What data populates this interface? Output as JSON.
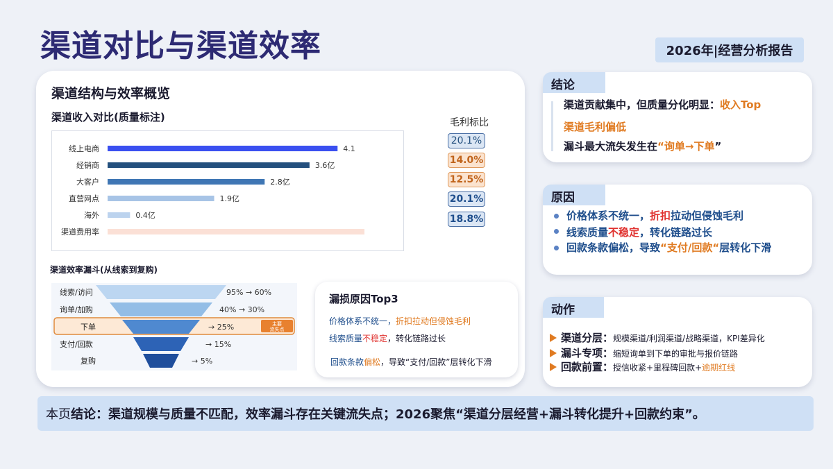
{
  "page": {
    "title": "渠道对比与渠道效率",
    "report_tag": "2026年|经营分析报告"
  },
  "overview": {
    "title": "渠道结构与效率概览",
    "revenue_subtitle": "渠道收入对比(质量标注)",
    "margin_header": "毛利标比",
    "margins": [
      "20.1%",
      "14.0%",
      "12.5%",
      "20.1%",
      "18.8%"
    ],
    "funnel_title": "渠道效率漏斗(从线索到复购)",
    "funnel_tag": [
      "主要",
      "流失点"
    ]
  },
  "chart_data": {
    "type": "bar",
    "orientation": "horizontal",
    "categories": [
      "线上电商",
      "经销商",
      "大客户",
      "直营网点",
      "海外",
      "渠道费用率"
    ],
    "values": [
      4.1,
      3.6,
      2.8,
      1.9,
      0.4,
      null
    ],
    "value_labels": [
      "4.1",
      "3.6亿",
      "2.8亿",
      "1.9亿",
      "0.4亿",
      ""
    ],
    "colors": [
      "#3a4ff0",
      "#24507e",
      "#3f76b4",
      "#a7c4e6",
      "#bcd3ee",
      "#fbe0d6"
    ],
    "xlim": [
      0,
      5
    ]
  },
  "funnel": {
    "stages": [
      {
        "label": "线索/访问",
        "value": "95% → 60%"
      },
      {
        "label": "询单/加购",
        "value": "40% → 30%"
      },
      {
        "label": "下单",
        "value": "→ 25%"
      },
      {
        "label": "支付/回款",
        "value": "→ 15%"
      },
      {
        "label": "复购",
        "value": "→ 5%"
      }
    ]
  },
  "top3": {
    "title": "漏损原因Top3",
    "line1_a": "价格体系不统一，",
    "line1_b": "折扣拉动但侵蚀毛利",
    "line2_a": "线索质量",
    "line2_b": "不稳定",
    "line2_c": "，转化链路过长",
    "line3_a": "回款条款",
    "line3_b": "偏松",
    "line3_c": "，导致“支付/回款”层转化下滑"
  },
  "conclusion": {
    "tag": "结论",
    "line1_a": "渠道贡献集中，但质量分化明显：",
    "line1_b": "收入Top",
    "line2": "渠道毛利偏低",
    "line3_a": "漏斗最大流失发生在",
    "line3_b": "“询单→下单",
    "line3_c": "”"
  },
  "cause": {
    "tag": "原因",
    "line1_a": "价格体系不统一，",
    "line1_b": "折扣",
    "line1_c": "拉动但侵蚀毛利",
    "line2_a": "线索质量",
    "line2_b": "不稳定",
    "line2_c": "，转化链路过长",
    "line3_a": "回款条款偏松",
    "line3_b": "，导致",
    "line3_c": "“支付/回款“",
    "line3_d": "层转化下滑"
  },
  "action": {
    "tag": "动作",
    "items": [
      {
        "head": "渠道分层：",
        "body": "规模渠道/利润渠道/战略渠道，KPI差异化",
        "body_hl": ""
      },
      {
        "head": "漏斗专项：",
        "body": "缩短询单到下单的审批与报价链路",
        "body_hl": ""
      },
      {
        "head": "回款前置：",
        "body": "授信收紧+里程碑回款+",
        "body_hl": "逾期红线"
      }
    ]
  },
  "bottom": {
    "prefix": "本页",
    "label": "结论：",
    "text": "渠道规模与质量不匹配，效率漏斗存在关键流失点；2026聚焦“渠道分层经营+漏斗转化提升+回款约束”。"
  }
}
